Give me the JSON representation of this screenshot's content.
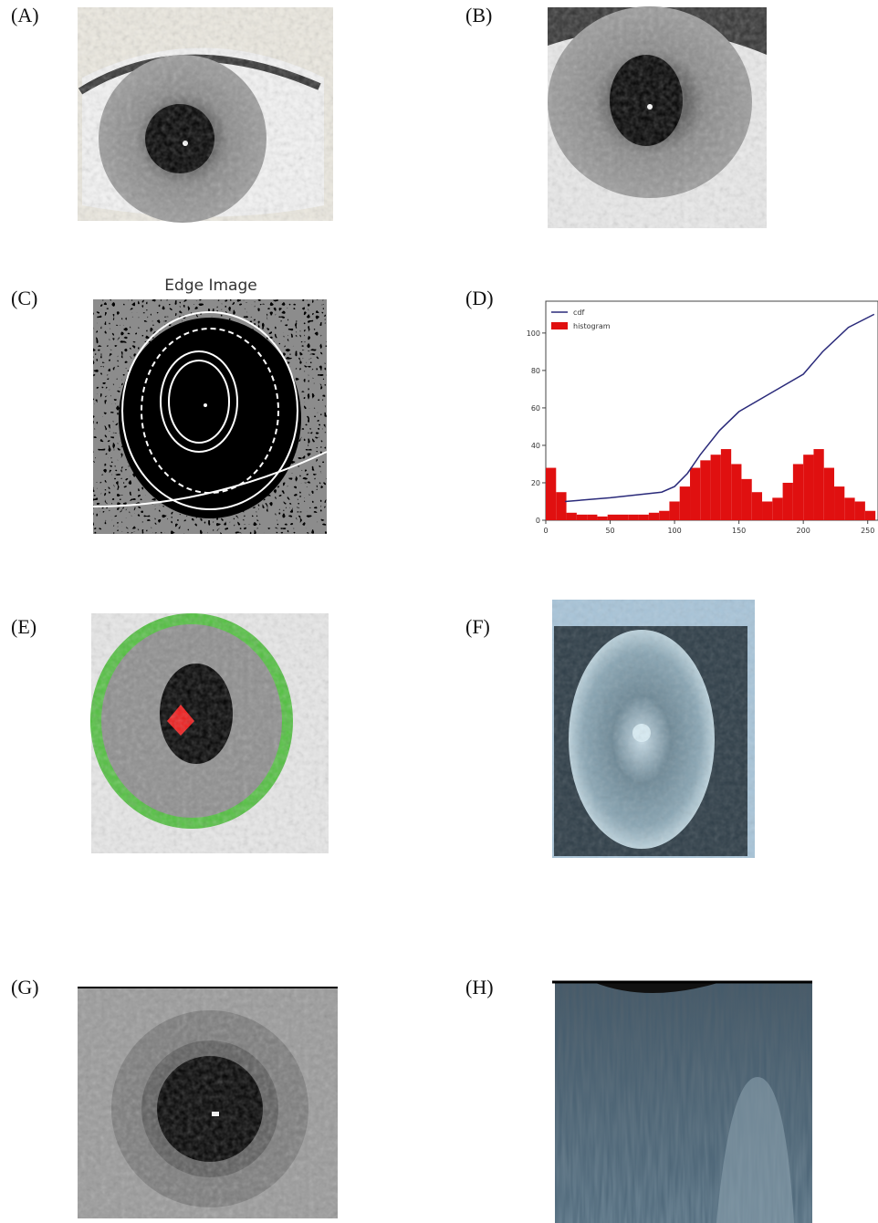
{
  "panels": [
    {
      "label": "(A)"
    },
    {
      "label": "(B)"
    },
    {
      "label": "(C)",
      "title": "Edge Image"
    },
    {
      "label": "(D)"
    },
    {
      "label": "(E)"
    },
    {
      "label": "(F)"
    },
    {
      "label": "(G)"
    },
    {
      "label": "(H)"
    }
  ],
  "chart_data": {
    "type": "histogram",
    "bins": [
      0,
      8,
      16,
      24,
      32,
      40,
      48,
      56,
      64,
      72,
      80,
      88,
      96,
      104,
      112,
      120,
      128,
      136,
      144,
      152,
      160,
      168,
      176,
      184,
      192,
      200,
      208,
      216,
      224,
      232,
      240,
      248,
      256
    ],
    "series": [
      {
        "name": "cdf",
        "type": "line",
        "color": "#2a2a7a",
        "x": [
          15,
          50,
          90,
          100,
          110,
          120,
          135,
          150,
          175,
          200,
          215,
          235,
          255
        ],
        "values": [
          10,
          12,
          15,
          18,
          25,
          35,
          48,
          58,
          68,
          78,
          90,
          103,
          110
        ]
      },
      {
        "name": "histogram",
        "type": "histogram",
        "color": "#e01010",
        "values": [
          28,
          15,
          4,
          3,
          3,
          2,
          3,
          3,
          3,
          3,
          4,
          5,
          10,
          18,
          28,
          32,
          35,
          38,
          30,
          22,
          15,
          10,
          12,
          20,
          30,
          35,
          38,
          28,
          18,
          12,
          10,
          5
        ]
      }
    ],
    "xlim": [
      0,
      258
    ],
    "ylim": [
      0,
      117
    ],
    "xticks": [
      0,
      50,
      100,
      150,
      200,
      250
    ],
    "yticks": [
      0,
      20,
      40,
      60,
      80,
      100
    ],
    "legend": "upper left"
  }
}
